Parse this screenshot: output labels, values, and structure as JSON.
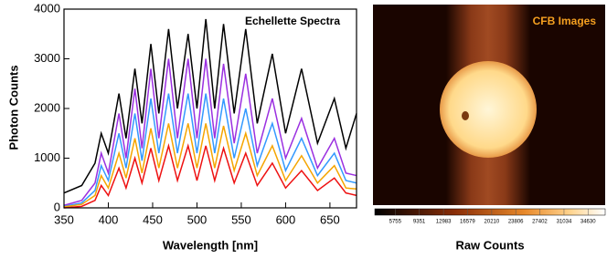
{
  "chart_data": [
    {
      "type": "line",
      "annotation": "Echellette Spectra",
      "xlabel": "Wavelength [nm]",
      "ylabel": "Photon Counts",
      "xlim": [
        350,
        680
      ],
      "ylim": [
        0,
        4000
      ],
      "xticks": [
        350,
        400,
        450,
        500,
        550,
        600,
        650
      ],
      "yticks": [
        0,
        1000,
        2000,
        3000,
        4000
      ],
      "x": [
        350,
        370,
        385,
        392,
        400,
        412,
        420,
        430,
        438,
        448,
        457,
        468,
        478,
        490,
        500,
        510,
        520,
        530,
        542,
        555,
        568,
        585,
        600,
        618,
        636,
        655,
        668,
        680
      ],
      "series": [
        {
          "color": "#000000",
          "values": [
            300,
            450,
            900,
            1500,
            1100,
            2300,
            1400,
            2800,
            1700,
            3300,
            1900,
            3600,
            2000,
            3500,
            2000,
            3800,
            2000,
            3700,
            1900,
            3600,
            1700,
            3100,
            1500,
            2800,
            1300,
            2200,
            1200,
            1900
          ]
        },
        {
          "color": "#9b30e0",
          "values": [
            50,
            150,
            500,
            1100,
            700,
            1900,
            1000,
            2400,
            1200,
            2800,
            1400,
            3000,
            1400,
            3000,
            1400,
            3000,
            1400,
            2900,
            1300,
            2700,
            1100,
            2200,
            1000,
            1800,
            800,
            1400,
            700,
            650
          ]
        },
        {
          "color": "#3399ff",
          "values": [
            30,
            100,
            350,
            850,
            550,
            1500,
            800,
            1900,
            950,
            2200,
            1100,
            2300,
            1100,
            2300,
            1100,
            2300,
            1100,
            2200,
            1000,
            2000,
            850,
            1700,
            750,
            1400,
            650,
            1100,
            550,
            500
          ]
        },
        {
          "color": "#f5a500",
          "values": [
            20,
            70,
            250,
            650,
            400,
            1100,
            600,
            1400,
            700,
            1600,
            800,
            1700,
            800,
            1700,
            800,
            1700,
            800,
            1650,
            750,
            1500,
            650,
            1250,
            550,
            1050,
            500,
            850,
            400,
            380
          ]
        },
        {
          "color": "#ee1111",
          "values": [
            0,
            30,
            150,
            450,
            250,
            800,
            400,
            1000,
            500,
            1200,
            550,
            1250,
            550,
            1250,
            550,
            1250,
            550,
            1200,
            500,
            1100,
            450,
            900,
            400,
            750,
            350,
            600,
            300,
            250
          ]
        }
      ]
    },
    {
      "type": "image",
      "annotation": "CFB Images",
      "colorbar_label": "Raw Counts",
      "clim": [
        2700,
        37200
      ],
      "cticks": [
        5755,
        9351,
        12983,
        16579,
        20210,
        23806,
        27402,
        31034,
        34630
      ]
    }
  ]
}
